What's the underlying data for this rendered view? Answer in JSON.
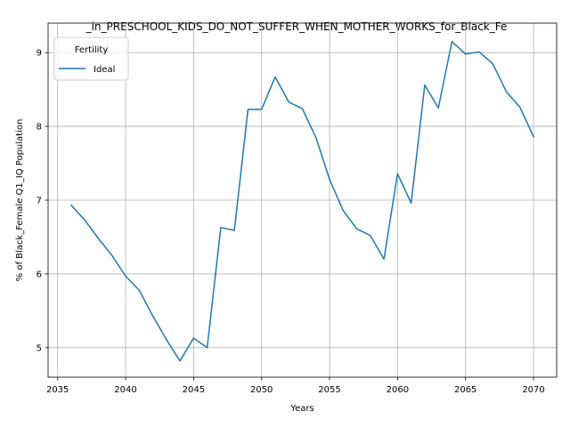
{
  "chart_data": {
    "type": "line",
    "title": "_in_PRESCHOOL_KIDS_DO_NOT_SUFFER_WHEN_MOTHER_WORKS_for_Black_Fe",
    "xlabel": "Years",
    "ylabel": "% of Black_Female Q1_IQ Population",
    "xlim": [
      2034.3,
      2071.7
    ],
    "ylim": [
      4.6,
      9.4
    ],
    "xticks": [
      2035,
      2040,
      2045,
      2050,
      2055,
      2060,
      2065,
      2070
    ],
    "yticks": [
      5,
      6,
      7,
      8,
      9
    ],
    "grid": true,
    "legend": {
      "title": "Fertility",
      "placement": "top-left"
    },
    "series": [
      {
        "name": "Ideal",
        "color": "#1f77b4",
        "x": [
          2036,
          2037,
          2038,
          2039,
          2040,
          2041,
          2042,
          2043,
          2044,
          2045,
          2046,
          2047,
          2048,
          2049,
          2050,
          2051,
          2052,
          2053,
          2054,
          2055,
          2056,
          2057,
          2058,
          2059,
          2060,
          2061,
          2062,
          2063,
          2064,
          2065,
          2066,
          2067,
          2068,
          2069,
          2070
        ],
        "y": [
          6.93,
          6.73,
          6.48,
          6.25,
          5.97,
          5.78,
          5.43,
          5.11,
          4.82,
          5.13,
          5.0,
          6.63,
          6.59,
          8.23,
          8.23,
          8.67,
          8.33,
          8.24,
          7.85,
          7.28,
          6.86,
          6.61,
          6.52,
          6.2,
          7.36,
          6.96,
          8.56,
          8.25,
          9.15,
          8.98,
          9.01,
          8.85,
          8.47,
          8.26,
          7.86
        ]
      }
    ]
  }
}
